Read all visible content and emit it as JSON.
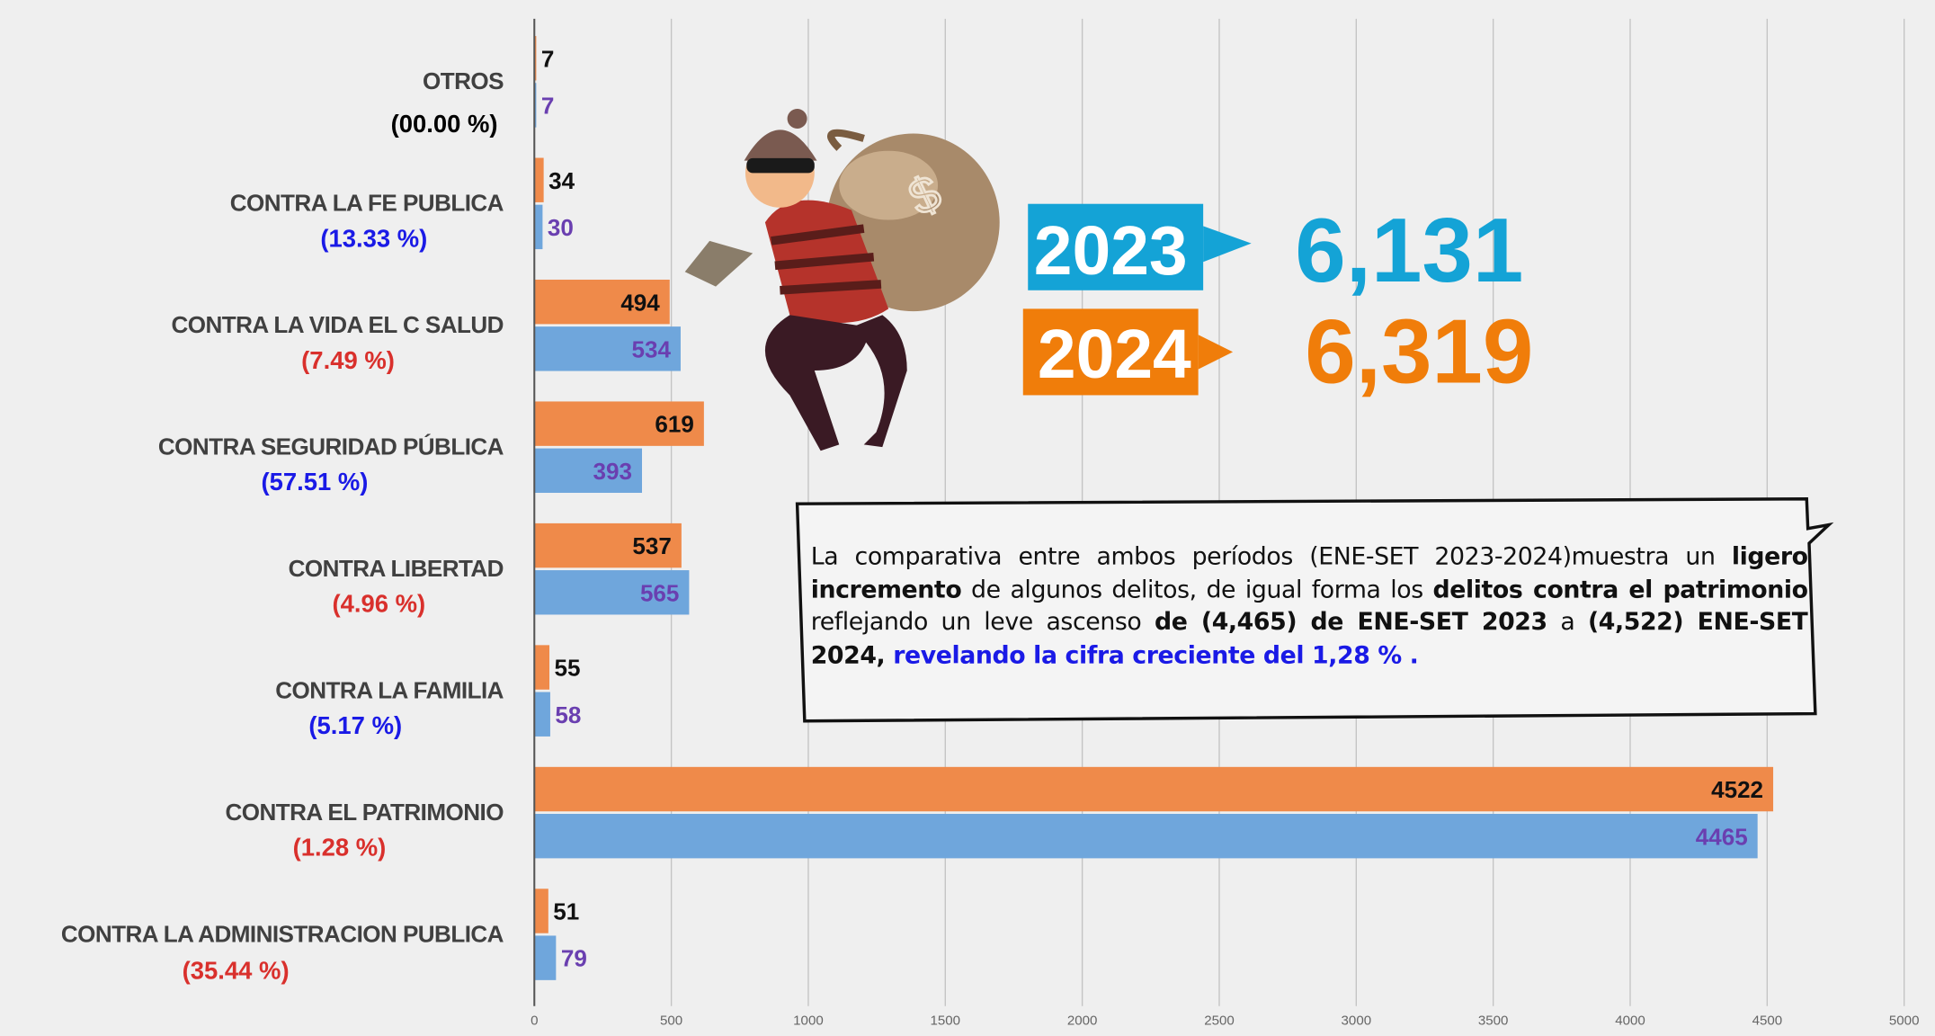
{
  "chart_data": {
    "type": "barh",
    "categories": [
      "OTROS",
      "CONTRA LA FE PUBLICA",
      "CONTRA LA VIDA EL C SALUD",
      "CONTRA SEGURIDAD PÚBLICA",
      "CONTRA LIBERTAD",
      "CONTRA LA FAMILIA",
      "CONTRA EL PATRIMONIO",
      "CONTRA LA ADMINISTRACION PUBLICA"
    ],
    "category_notes": [
      "(00.00 %)",
      "(13.33 %)",
      "(7.49 %)",
      "(57.51 %)",
      "(4.96 %)",
      "(5.17 %)",
      "(1.28 %)",
      "(35.44 %)"
    ],
    "category_note_colors": [
      "#000000",
      "#1a1ae6",
      "#d9302c",
      "#1a1ae6",
      "#d9302c",
      "#1a1ae6",
      "#d9302c",
      "#d9302c"
    ],
    "series": [
      {
        "color": "#ef8a4a",
        "label_color": "#111111",
        "values": [
          7,
          34,
          494,
          619,
          537,
          55,
          4522,
          51
        ]
      },
      {
        "color": "#6fa6dc",
        "label_color": "#6a3fb0",
        "values": [
          7,
          30,
          534,
          393,
          565,
          58,
          4465,
          79
        ]
      }
    ],
    "xlim": [
      0,
      5000
    ],
    "xticks": [
      0,
      500,
      1000,
      1500,
      2000,
      2500,
      3000,
      3500,
      4000,
      4500,
      5000
    ],
    "grid": true,
    "annotations": [
      {
        "label": "2023",
        "total": "6,131",
        "color": "#14a3d6"
      },
      {
        "label": "2024",
        "total": "6,319",
        "color": "#f07d0a"
      }
    ],
    "note": [
      {
        "text": "La comparativa entre ambos períodos (ENE-SET 2023-2024)muestra un ",
        "bold": false
      },
      {
        "text": "ligero incremento",
        "bold": true
      },
      {
        "text": " de algunos delitos, de igual forma los ",
        "bold": false
      },
      {
        "text": "delitos contra el patrimonio",
        "bold": true
      },
      {
        "text": " reflejando un leve ascenso ",
        "bold": false
      },
      {
        "text": "de (4,465) de ENE-SET 2023",
        "bold": true
      },
      {
        "text": " a ",
        "bold": false
      },
      {
        "text": "(4,522) ENE-SET 2024,",
        "bold": true
      },
      {
        "text": " revelando la cifra creciente del 1,28 % .",
        "bold": true,
        "color": "#1a1ae6"
      }
    ]
  }
}
